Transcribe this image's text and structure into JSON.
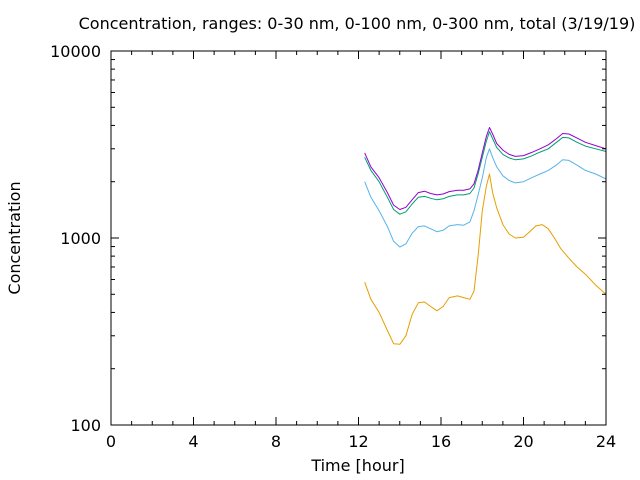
{
  "chart_data": {
    "type": "line",
    "title": "Concentration, ranges: 0-30 nm, 0-100 nm, 0-300 nm, total (3/19/19)",
    "xlabel": "Time [hour]",
    "ylabel": "Concentration",
    "xlim": [
      0,
      24
    ],
    "ylim": [
      100,
      10000
    ],
    "y_scale": "log",
    "grid": false,
    "legend": "none",
    "x_ticks": [
      0,
      4,
      8,
      12,
      16,
      20,
      24
    ],
    "x_tick_labels": [
      "0",
      "4",
      "8",
      "12",
      "16",
      "20",
      "24"
    ],
    "y_ticks": [
      100,
      1000,
      10000
    ],
    "y_tick_labels": [
      "100",
      "1000",
      "10000"
    ],
    "series": [
      {
        "color": "#e69f00",
        "points": [
          [
            12.3,
            580
          ],
          [
            12.6,
            470
          ],
          [
            13.0,
            400
          ],
          [
            13.4,
            320
          ],
          [
            13.7,
            272
          ],
          [
            14.0,
            270
          ],
          [
            14.3,
            300
          ],
          [
            14.6,
            390
          ],
          [
            14.9,
            450
          ],
          [
            15.2,
            455
          ],
          [
            15.5,
            430
          ],
          [
            15.8,
            408
          ],
          [
            16.1,
            430
          ],
          [
            16.4,
            480
          ],
          [
            16.8,
            490
          ],
          [
            17.1,
            480
          ],
          [
            17.4,
            470
          ],
          [
            17.6,
            520
          ],
          [
            17.8,
            800
          ],
          [
            18.0,
            1400
          ],
          [
            18.2,
            1900
          ],
          [
            18.35,
            2200
          ],
          [
            18.5,
            1750
          ],
          [
            18.7,
            1450
          ],
          [
            19.0,
            1180
          ],
          [
            19.3,
            1050
          ],
          [
            19.6,
            1000
          ],
          [
            20.0,
            1010
          ],
          [
            20.3,
            1080
          ],
          [
            20.6,
            1160
          ],
          [
            20.9,
            1180
          ],
          [
            21.2,
            1120
          ],
          [
            21.5,
            1000
          ],
          [
            21.8,
            880
          ],
          [
            22.2,
            780
          ],
          [
            22.6,
            700
          ],
          [
            23.0,
            640
          ],
          [
            23.5,
            560
          ],
          [
            24.0,
            500
          ]
        ]
      },
      {
        "color": "#56b4e9",
        "points": [
          [
            12.3,
            2000
          ],
          [
            12.6,
            1650
          ],
          [
            13.0,
            1400
          ],
          [
            13.4,
            1150
          ],
          [
            13.7,
            960
          ],
          [
            14.0,
            895
          ],
          [
            14.3,
            930
          ],
          [
            14.6,
            1060
          ],
          [
            14.9,
            1150
          ],
          [
            15.2,
            1160
          ],
          [
            15.5,
            1120
          ],
          [
            15.8,
            1080
          ],
          [
            16.1,
            1100
          ],
          [
            16.4,
            1160
          ],
          [
            16.8,
            1180
          ],
          [
            17.1,
            1170
          ],
          [
            17.4,
            1220
          ],
          [
            17.6,
            1400
          ],
          [
            17.8,
            1700
          ],
          [
            18.0,
            2100
          ],
          [
            18.2,
            2700
          ],
          [
            18.35,
            3000
          ],
          [
            18.5,
            2700
          ],
          [
            18.7,
            2400
          ],
          [
            19.0,
            2150
          ],
          [
            19.3,
            2030
          ],
          [
            19.6,
            1970
          ],
          [
            20.0,
            2000
          ],
          [
            20.4,
            2100
          ],
          [
            20.8,
            2200
          ],
          [
            21.2,
            2300
          ],
          [
            21.6,
            2460
          ],
          [
            21.9,
            2620
          ],
          [
            22.2,
            2600
          ],
          [
            22.6,
            2450
          ],
          [
            23.0,
            2300
          ],
          [
            23.5,
            2200
          ],
          [
            24.0,
            2070
          ]
        ]
      },
      {
        "color": "#009e73",
        "points": [
          [
            12.3,
            2700
          ],
          [
            12.6,
            2300
          ],
          [
            13.0,
            2000
          ],
          [
            13.4,
            1650
          ],
          [
            13.7,
            1420
          ],
          [
            14.0,
            1340
          ],
          [
            14.3,
            1380
          ],
          [
            14.6,
            1520
          ],
          [
            14.9,
            1650
          ],
          [
            15.2,
            1670
          ],
          [
            15.5,
            1630
          ],
          [
            15.8,
            1600
          ],
          [
            16.1,
            1620
          ],
          [
            16.4,
            1670
          ],
          [
            16.8,
            1700
          ],
          [
            17.1,
            1700
          ],
          [
            17.4,
            1730
          ],
          [
            17.6,
            1850
          ],
          [
            17.8,
            2200
          ],
          [
            18.0,
            2700
          ],
          [
            18.2,
            3300
          ],
          [
            18.35,
            3700
          ],
          [
            18.5,
            3400
          ],
          [
            18.7,
            3050
          ],
          [
            19.0,
            2800
          ],
          [
            19.3,
            2680
          ],
          [
            19.6,
            2620
          ],
          [
            20.0,
            2650
          ],
          [
            20.4,
            2750
          ],
          [
            20.8,
            2880
          ],
          [
            21.2,
            3000
          ],
          [
            21.6,
            3250
          ],
          [
            21.9,
            3450
          ],
          [
            22.2,
            3430
          ],
          [
            22.6,
            3250
          ],
          [
            23.0,
            3100
          ],
          [
            23.5,
            3000
          ],
          [
            24.0,
            2900
          ]
        ]
      },
      {
        "color": "#9400d3",
        "points": [
          [
            12.3,
            2850
          ],
          [
            12.6,
            2400
          ],
          [
            13.0,
            2100
          ],
          [
            13.4,
            1750
          ],
          [
            13.7,
            1500
          ],
          [
            14.0,
            1420
          ],
          [
            14.3,
            1460
          ],
          [
            14.6,
            1600
          ],
          [
            14.9,
            1750
          ],
          [
            15.2,
            1780
          ],
          [
            15.5,
            1730
          ],
          [
            15.8,
            1700
          ],
          [
            16.1,
            1720
          ],
          [
            16.4,
            1770
          ],
          [
            16.8,
            1800
          ],
          [
            17.1,
            1800
          ],
          [
            17.4,
            1830
          ],
          [
            17.6,
            1950
          ],
          [
            17.8,
            2300
          ],
          [
            18.0,
            2850
          ],
          [
            18.2,
            3500
          ],
          [
            18.35,
            3900
          ],
          [
            18.5,
            3600
          ],
          [
            18.7,
            3200
          ],
          [
            19.0,
            2950
          ],
          [
            19.3,
            2800
          ],
          [
            19.6,
            2730
          ],
          [
            20.0,
            2760
          ],
          [
            20.4,
            2870
          ],
          [
            20.8,
            3000
          ],
          [
            21.2,
            3150
          ],
          [
            21.6,
            3400
          ],
          [
            21.9,
            3620
          ],
          [
            22.2,
            3600
          ],
          [
            22.6,
            3420
          ],
          [
            23.0,
            3250
          ],
          [
            23.5,
            3120
          ],
          [
            24.0,
            3000
          ]
        ]
      }
    ]
  }
}
